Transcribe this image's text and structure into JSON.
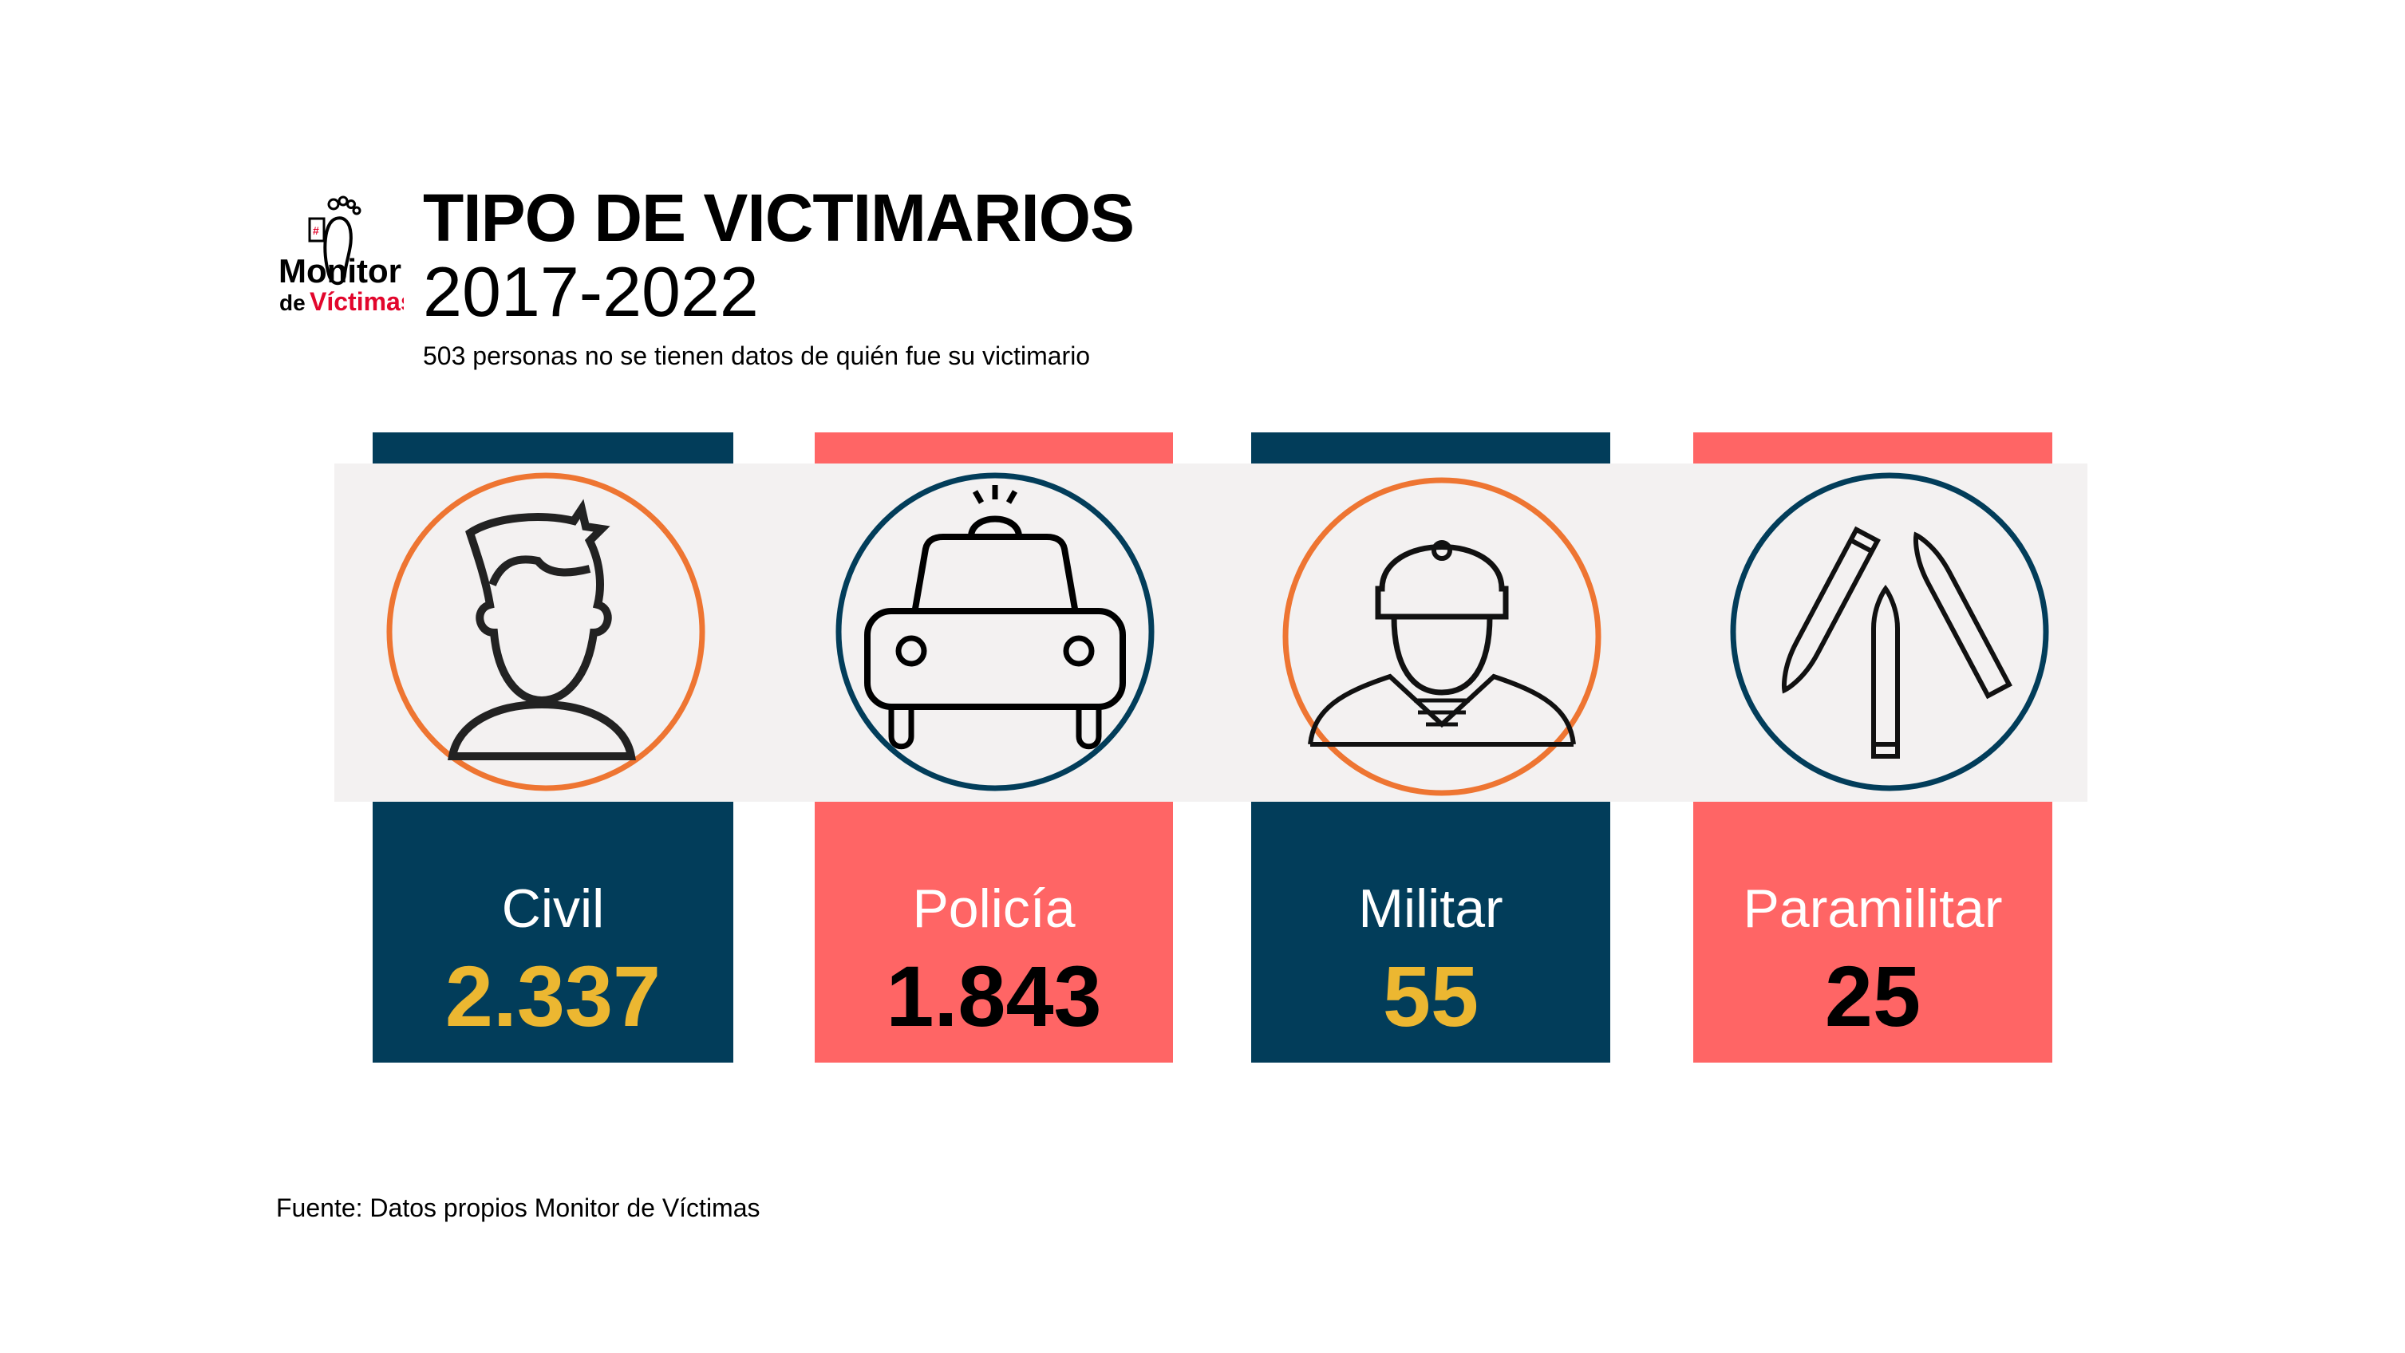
{
  "logo": {
    "line1": "Monitor",
    "line2_prefix": "de",
    "line2": "Víctimas"
  },
  "header": {
    "title": "TIPO DE VICTIMARIOS",
    "years": "2017-2022",
    "subtitle": "503 personas no se tienen datos de quién fue su victimario"
  },
  "colors": {
    "navy": "#023d5a",
    "coral": "#ff6565",
    "yellow": "#ecb731",
    "orange": "#ee7532",
    "band": "#f3f1f1"
  },
  "cards": [
    {
      "label": "Civil",
      "value": "2.337",
      "icon": "person-icon"
    },
    {
      "label": "Policía",
      "value": "1.843",
      "icon": "police-car-icon"
    },
    {
      "label": "Militar",
      "value": "55",
      "icon": "soldier-icon"
    },
    {
      "label": "Paramilitar",
      "value": "25",
      "icon": "bullets-icon"
    }
  ],
  "footer": "Fuente: Datos propios Monitor de Víctimas"
}
